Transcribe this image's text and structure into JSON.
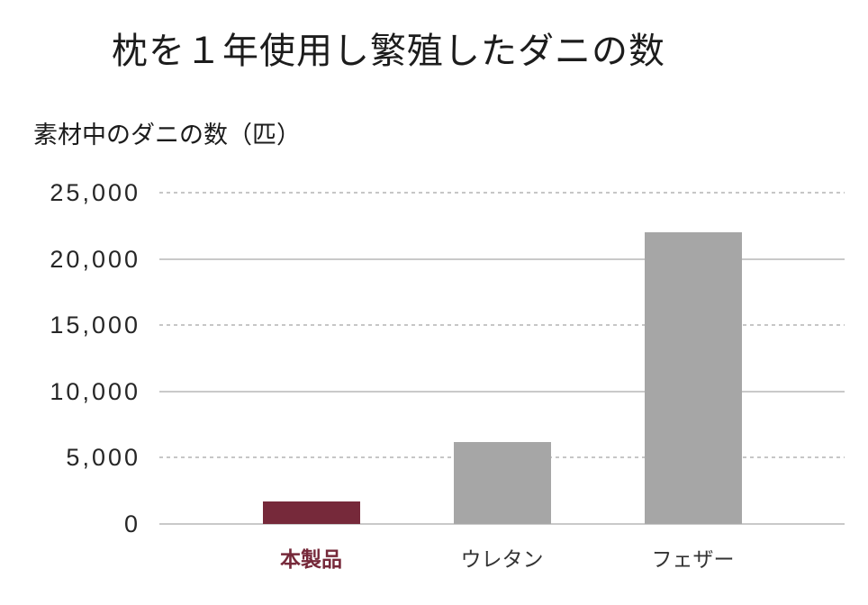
{
  "page": {
    "background": "#ffffff"
  },
  "chart_data": {
    "type": "bar",
    "title": "枕を１年使用し繁殖したダニの数",
    "ylabel": "素材中のダニの数（匹）",
    "xlabel": "",
    "categories": [
      "本製品",
      "ウレタン",
      "フェザー"
    ],
    "values": [
      1700,
      6200,
      22000
    ],
    "ylim": [
      0,
      25000
    ],
    "ytick_step": 5000,
    "ytick_labels": [
      "0",
      "5,000",
      "10,000",
      "15,000",
      "20,000",
      "25,000"
    ],
    "bar_colors": [
      "#76293A",
      "#A6A6A6",
      "#A6A6A6"
    ],
    "category_label_colors": [
      "#76293A",
      "#333333",
      "#333333"
    ],
    "category_label_bold": [
      true,
      false,
      false
    ],
    "grid": "horizontal lines; solid at 0/10,000/20,000, dashed at 5,000/15,000/25,000",
    "legend": "none"
  },
  "colors": {
    "title_text": "#1C1C1C",
    "axis_label_text": "#1C1C1C",
    "tick_text": "#262626",
    "gridline_solid": "#C9C9C9",
    "gridline_dashed": "#C6C6C6",
    "accent_bar": "#76293A",
    "default_bar": "#A6A6A6",
    "background": "#FFFFFF"
  }
}
